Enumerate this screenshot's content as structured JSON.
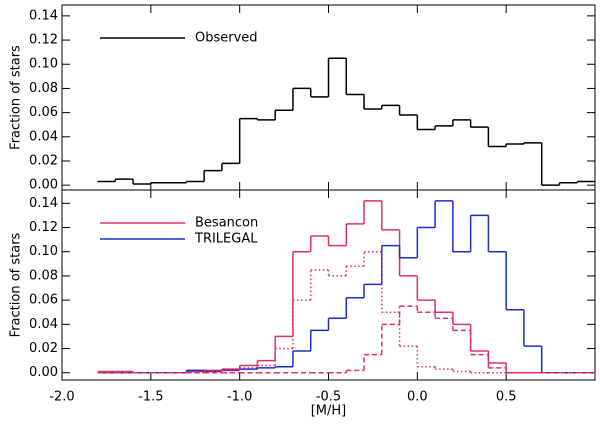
{
  "chart_data": [
    {
      "type": "histogram",
      "ylabel": "Fraction of stars",
      "bins": [
        -1.8,
        -1.7,
        -1.6,
        -1.5,
        -1.4,
        -1.3,
        -1.2,
        -1.1,
        -1.0,
        -0.9,
        -0.8,
        -0.7,
        -0.6,
        -0.5,
        -0.4,
        -0.3,
        -0.2,
        -0.1,
        0.0,
        0.1,
        0.2,
        0.3,
        0.4,
        0.5,
        0.6,
        0.7,
        0.8,
        0.9,
        1.0
      ],
      "series": [
        {
          "name": "Observed",
          "color": "#000000",
          "dash": "solid",
          "values": [
            0.003,
            0.005,
            0.001,
            0.002,
            0.002,
            0.003,
            0.012,
            0.018,
            0.055,
            0.054,
            0.062,
            0.08,
            0.073,
            0.105,
            0.075,
            0.063,
            0.066,
            0.058,
            0.046,
            0.049,
            0.054,
            0.048,
            0.032,
            0.034,
            0.035,
            0,
            0.002,
            0.003
          ]
        }
      ],
      "xlim": [
        -2.0,
        1.0
      ],
      "ylim": [
        -0.004,
        0.149
      ],
      "yticks": [
        {
          "value": 0,
          "label": "0.00"
        },
        {
          "value": 0.02,
          "label": "0.02"
        },
        {
          "value": 0.04,
          "label": "0.04"
        },
        {
          "value": 0.06,
          "label": "0.06"
        },
        {
          "value": 0.08,
          "label": "0.08"
        },
        {
          "value": 0.1,
          "label": "0.10"
        },
        {
          "value": 0.12,
          "label": "0.12"
        },
        {
          "value": 0.14,
          "label": "0.14"
        }
      ]
    },
    {
      "type": "histogram",
      "ylabel": "Fraction of stars",
      "xlabel": "[M/H]",
      "bins": [
        -1.8,
        -1.7,
        -1.6,
        -1.5,
        -1.4,
        -1.3,
        -1.2,
        -1.1,
        -1.0,
        -0.9,
        -0.8,
        -0.7,
        -0.6,
        -0.5,
        -0.4,
        -0.3,
        -0.2,
        -0.1,
        0.0,
        0.1,
        0.2,
        0.3,
        0.4,
        0.5,
        0.6,
        0.7,
        0.8,
        0.9,
        1.0
      ],
      "series": [
        {
          "name": "Besancon",
          "color": "#e0306a",
          "dash": "solid",
          "values": [
            0.001,
            0.001,
            0,
            0,
            0,
            0.001,
            0.002,
            0.003,
            0.006,
            0.01,
            0.03,
            0.1,
            0.113,
            0.105,
            0.123,
            0.142,
            0.118,
            0.08,
            0.06,
            0.05,
            0.04,
            0.018,
            0.008,
            0,
            0,
            0,
            0,
            0
          ]
        },
        {
          "name": "TRILEGAL",
          "color": "#1a2ecc",
          "dash": "solid",
          "values": [
            0,
            0,
            0,
            0,
            0,
            0.002,
            0.001,
            0.002,
            0.003,
            0.004,
            0.005,
            0.018,
            0.035,
            0.045,
            0.062,
            0.073,
            0.105,
            0.095,
            0.12,
            0.142,
            0.1,
            0.13,
            0.1,
            0.052,
            0.022,
            0,
            0,
            0
          ]
        },
        {
          "color": "#e0306a",
          "dash": "dotted",
          "values": [
            0,
            0,
            0,
            0,
            0,
            0,
            0.001,
            0.002,
            0.004,
            0.006,
            0.02,
            0.06,
            0.085,
            0.08,
            0.088,
            0.1,
            0.05,
            0.022,
            0.005,
            0.003,
            0.001,
            0,
            0,
            0,
            0,
            0,
            0,
            0
          ]
        },
        {
          "color": "#e0306a",
          "dash": "dashed",
          "values": [
            0,
            0,
            0,
            0,
            0,
            0,
            0,
            0,
            0,
            0,
            0,
            0,
            0,
            0,
            0.002,
            0.015,
            0.04,
            0.055,
            0.05,
            0.045,
            0.035,
            0.015,
            0.004,
            0,
            0,
            0,
            0,
            0
          ]
        }
      ],
      "xlim": [
        -2.0,
        1.0
      ],
      "ylim": [
        -0.006,
        0.151
      ],
      "xticks": [
        {
          "value": -2.0,
          "label": "-2.0"
        },
        -1.5,
        {
          "value": -1.0,
          "label": "-1.0"
        },
        -0.5,
        {
          "value": 0,
          "label": "0.0"
        },
        0.5
      ],
      "yticks": [
        {
          "value": 0,
          "label": "0.00"
        },
        {
          "value": 0.02,
          "label": "0.02"
        },
        {
          "value": 0.04,
          "label": "0.04"
        },
        {
          "value": 0.06,
          "label": "0.06"
        },
        {
          "value": 0.08,
          "label": "0.08"
        },
        {
          "value": 0.1,
          "label": "0.10"
        },
        {
          "value": 0.12,
          "label": "0.12"
        },
        {
          "value": 0.14,
          "label": "0.14"
        }
      ]
    }
  ]
}
